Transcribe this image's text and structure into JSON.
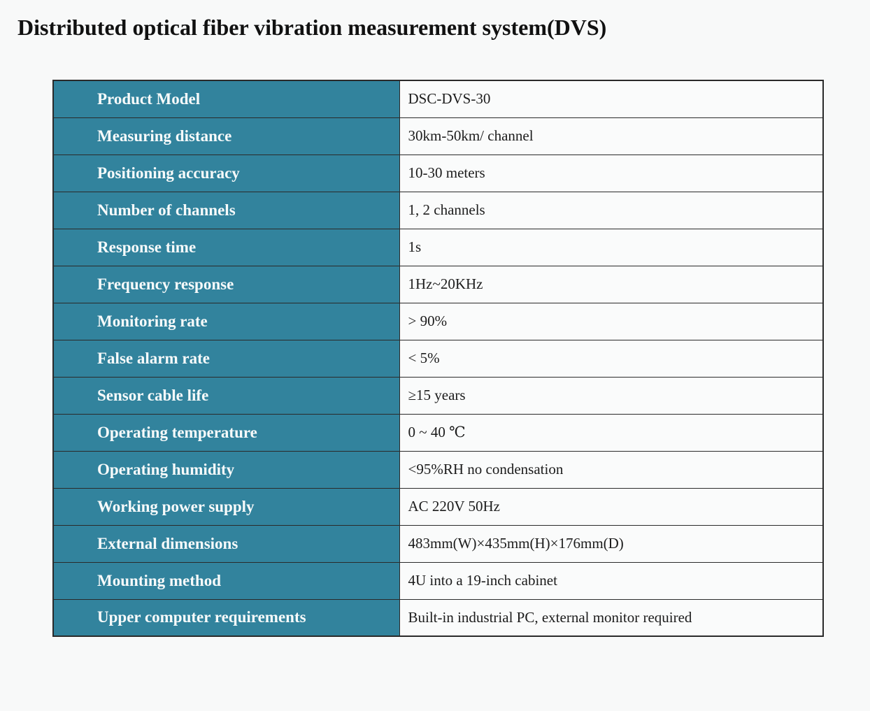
{
  "title": "Distributed optical fiber vibration measurement system(DVS)",
  "colors": {
    "accent_teal": "#32839d",
    "table_border": "#2a2a2a",
    "page_background": "#f8f9f9",
    "cell_background": "#fafbfb",
    "label_text": "#f7fafa",
    "value_text": "#1c1c1c",
    "title_text": "#111111"
  },
  "table": {
    "rows": [
      {
        "label": "Product Model",
        "value": "DSC-DVS-30"
      },
      {
        "label": "Measuring distance",
        "value": "30km-50km/ channel"
      },
      {
        "label": "Positioning accuracy",
        "value": "10-30 meters"
      },
      {
        "label": "Number of channels",
        "value": "1, 2 channels"
      },
      {
        "label": "Response time",
        "value": "1s"
      },
      {
        "label": "Frequency response",
        "value": "1Hz~20KHz"
      },
      {
        "label": "Monitoring rate",
        "value": "> 90%"
      },
      {
        "label": "False alarm rate",
        "value": "< 5%"
      },
      {
        "label": "Sensor cable life",
        "value": "≥15 years"
      },
      {
        "label": "Operating temperature",
        "value": "0 ~ 40 ℃"
      },
      {
        "label": "Operating humidity",
        "value": "<95%RH no condensation"
      },
      {
        "label": "Working power supply",
        "value": "AC 220V 50Hz"
      },
      {
        "label": "External dimensions",
        "value": "483mm(W)×435mm(H)×176mm(D)"
      },
      {
        "label": "Mounting method",
        "value": "4U into a 19-inch cabinet"
      },
      {
        "label": "Upper computer requirements",
        "value": "Built-in industrial PC, external monitor required"
      }
    ]
  }
}
